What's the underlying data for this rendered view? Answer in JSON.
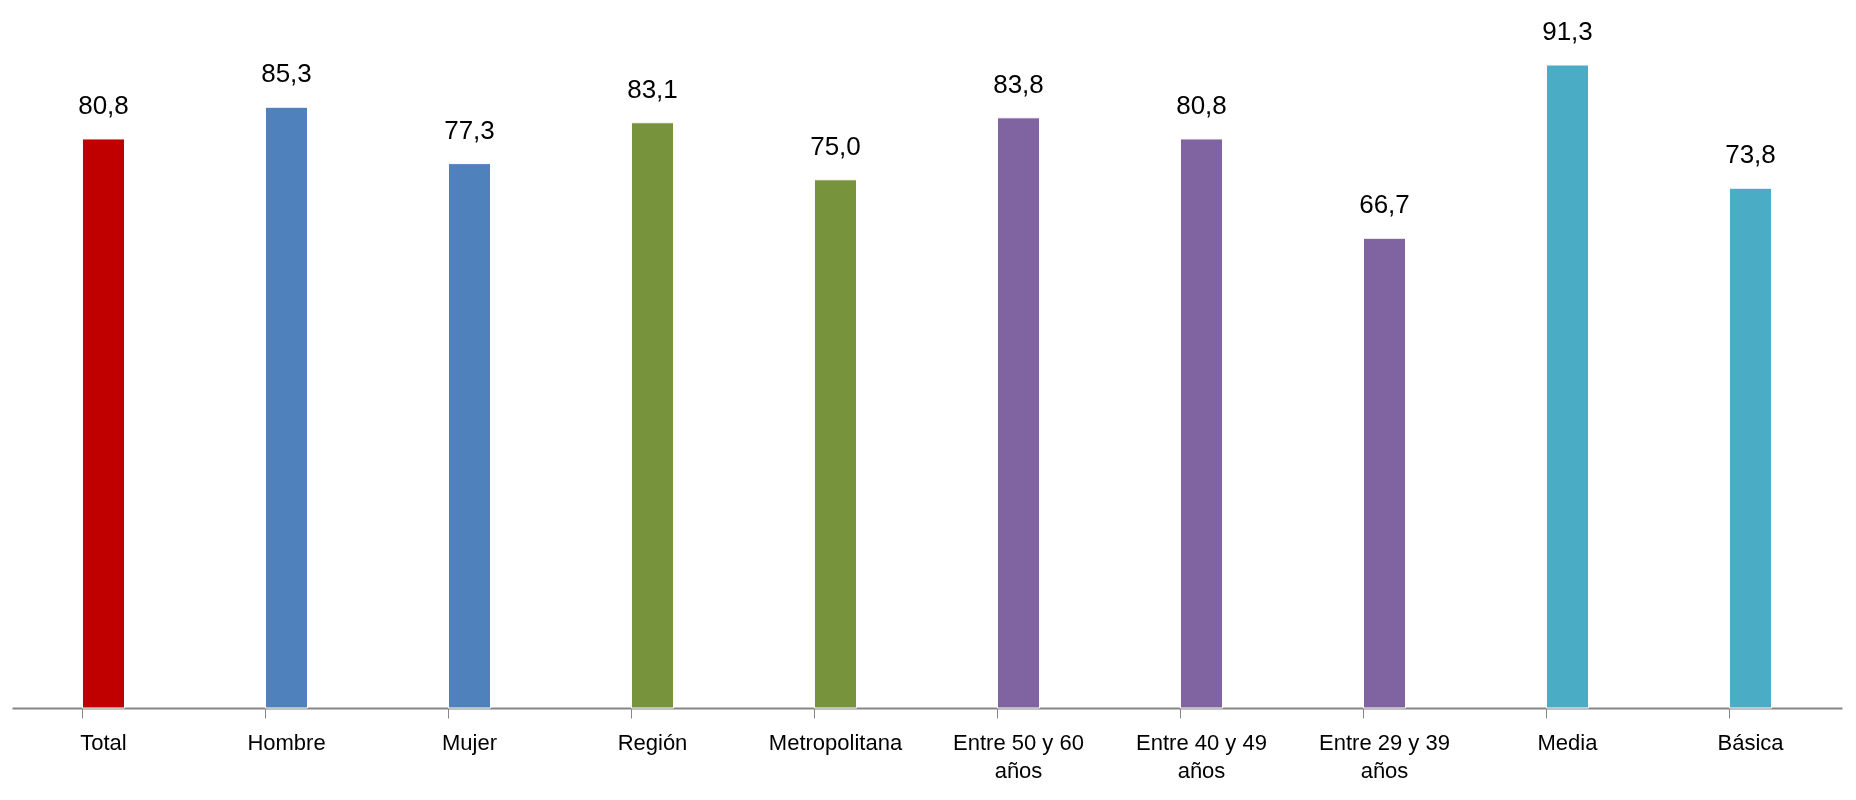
{
  "chart_data": {
    "type": "bar",
    "categories": [
      "Total",
      "Hombre",
      "Mujer",
      "Región",
      "Metropolitana",
      "Entre 50 y 60 años",
      "Entre 40 y 49 años",
      "Entre 29 y 39 años",
      "Media",
      "Básica"
    ],
    "values": [
      80.8,
      85.3,
      77.3,
      83.1,
      75.0,
      83.8,
      80.8,
      66.7,
      91.3,
      73.8
    ],
    "value_labels": [
      "80,8",
      "85,3",
      "77,3",
      "83,1",
      "75,0",
      "83,8",
      "80,8",
      "66,7",
      "91,3",
      "73,8"
    ],
    "colors": [
      "#c00000",
      "#4f81bd",
      "#4f81bd",
      "#77933c",
      "#77933c",
      "#8064a2",
      "#8064a2",
      "#8064a2",
      "#4bacc6",
      "#4bacc6"
    ],
    "grid": false
  }
}
